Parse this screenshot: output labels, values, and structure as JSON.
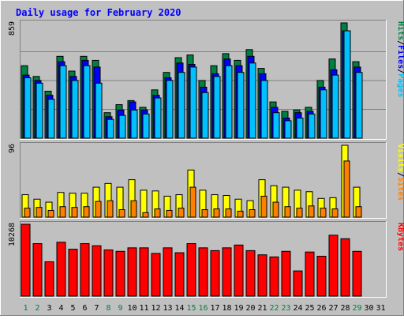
{
  "title": "Daily usage for February 2020",
  "colors": {
    "page_bg": "#c0c0c0",
    "plot_bg": "#c0c0c0",
    "hits": "#008040",
    "files": "#0000ff",
    "pages": "#00c0ff",
    "visits": "#ffff00",
    "sites": "#ff8000",
    "kbytes": "#ff0000",
    "title_text": "#0000ff",
    "day_weekend": "#008040",
    "day_weekday": "#000000"
  },
  "chart_data": [
    {
      "type": "bar",
      "panel": "hits-files-pages",
      "ylabel_parts": [
        "Pages",
        "Files",
        "Hits"
      ],
      "ymax_label": "859",
      "ylim": [
        0,
        859
      ],
      "categories": [
        1,
        2,
        3,
        4,
        5,
        6,
        7,
        8,
        9,
        10,
        11,
        12,
        13,
        14,
        15,
        16,
        17,
        18,
        19,
        20,
        21,
        22,
        23,
        24,
        25,
        26,
        27,
        28,
        29,
        30,
        31
      ],
      "series": [
        {
          "name": "Hits",
          "values": [
            540,
            460,
            350,
            610,
            500,
            610,
            580,
            190,
            250,
            280,
            230,
            360,
            490,
            600,
            620,
            430,
            540,
            630,
            580,
            660,
            520,
            270,
            200,
            210,
            230,
            430,
            590,
            859,
            570,
            0,
            0
          ]
        },
        {
          "name": "Files",
          "values": [
            470,
            430,
            320,
            570,
            460,
            580,
            530,
            160,
            210,
            270,
            210,
            320,
            450,
            560,
            550,
            380,
            480,
            590,
            540,
            610,
            480,
            230,
            150,
            190,
            200,
            380,
            510,
            800,
            530,
            0,
            0
          ]
        },
        {
          "name": "Pages",
          "values": [
            450,
            410,
            290,
            540,
            430,
            540,
            410,
            140,
            170,
            210,
            180,
            300,
            430,
            490,
            530,
            340,
            460,
            540,
            490,
            560,
            430,
            190,
            130,
            150,
            180,
            360,
            470,
            800,
            490,
            0,
            0
          ]
        }
      ]
    },
    {
      "type": "bar",
      "panel": "visits-sites",
      "ylabel_parts": [
        "Sites",
        "Visits"
      ],
      "ymax_label": "96",
      "ylim": [
        0,
        96
      ],
      "categories": [
        1,
        2,
        3,
        4,
        5,
        6,
        7,
        8,
        9,
        10,
        11,
        12,
        13,
        14,
        15,
        16,
        17,
        18,
        19,
        20,
        21,
        22,
        23,
        24,
        25,
        26,
        27,
        28,
        29,
        30,
        31
      ],
      "series": [
        {
          "name": "Visits",
          "values": [
            30,
            24,
            20,
            33,
            32,
            32,
            40,
            45,
            40,
            50,
            36,
            35,
            28,
            30,
            63,
            36,
            30,
            29,
            24,
            22,
            50,
            42,
            40,
            36,
            34,
            25,
            26,
            96,
            40,
            0,
            0
          ]
        },
        {
          "name": "Sites",
          "values": [
            12,
            13,
            9,
            14,
            13,
            14,
            21,
            22,
            10,
            22,
            6,
            11,
            9,
            12,
            40,
            10,
            11,
            11,
            8,
            10,
            28,
            20,
            14,
            12,
            15,
            12,
            11,
            75,
            14,
            0,
            0
          ]
        }
      ]
    },
    {
      "type": "bar",
      "panel": "kbytes",
      "ylabel_parts": [
        "KBytes"
      ],
      "ymax_label": "10268",
      "ylim": [
        0,
        10268
      ],
      "categories": [
        1,
        2,
        3,
        4,
        5,
        6,
        7,
        8,
        9,
        10,
        11,
        12,
        13,
        14,
        15,
        16,
        17,
        18,
        19,
        20,
        21,
        22,
        23,
        24,
        25,
        26,
        27,
        28,
        29,
        30,
        31
      ],
      "series": [
        {
          "name": "KBytes",
          "values": [
            10268,
            7500,
            4900,
            7700,
            6700,
            7500,
            7200,
            6600,
            6400,
            6900,
            6900,
            6100,
            6900,
            6200,
            7500,
            6900,
            6500,
            6900,
            7300,
            6500,
            5900,
            5600,
            6400,
            3600,
            6300,
            5700,
            8700,
            8200,
            6400,
            0,
            0
          ]
        }
      ]
    }
  ]
}
